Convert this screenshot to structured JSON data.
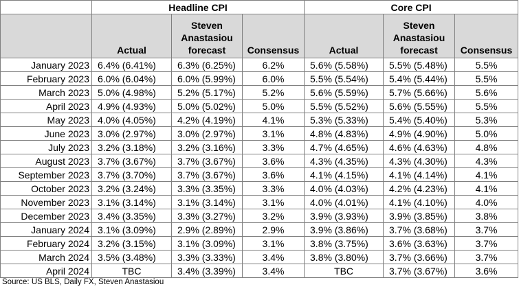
{
  "headline_group": "Headline CPI",
  "core_group": "Core CPI",
  "columns": [
    "Actual",
    "Steven Anastasiou forecast",
    "Consensus"
  ],
  "rows": [
    {
      "month": "January 2023",
      "h_actual": "6.4% (6.41%)",
      "h_forecast": "6.3% (6.25%)",
      "h_consensus": "6.2%",
      "c_actual": "5.6% (5.58%)",
      "c_forecast": "5.5% (5.48%)",
      "c_consensus": "5.5%"
    },
    {
      "month": "February 2023",
      "h_actual": "6.0% (6.04%)",
      "h_forecast": "6.0% (5.99%)",
      "h_consensus": "6.0%",
      "c_actual": "5.5% (5.54%)",
      "c_forecast": "5.4% (5.44%)",
      "c_consensus": "5.5%"
    },
    {
      "month": "March 2023",
      "h_actual": "5.0% (4.98%)",
      "h_forecast": "5.2% (5.17%)",
      "h_consensus": "5.2%",
      "c_actual": "5.6% (5.59%)",
      "c_forecast": "5.7% (5.66%)",
      "c_consensus": "5.6%"
    },
    {
      "month": "April 2023",
      "h_actual": "4.9% (4.93%)",
      "h_forecast": "5.0% (5.02%)",
      "h_consensus": "5.0%",
      "c_actual": "5.5% (5.52%)",
      "c_forecast": "5.6% (5.55%)",
      "c_consensus": "5.5%"
    },
    {
      "month": "May 2023",
      "h_actual": "4.0% (4.05%)",
      "h_forecast": "4.2% (4.19%)",
      "h_consensus": "4.1%",
      "c_actual": "5.3% (5.33%)",
      "c_forecast": "5.4% (5.40%)",
      "c_consensus": "5.3%"
    },
    {
      "month": "June 2023",
      "h_actual": "3.0% (2.97%)",
      "h_forecast": "3.0% (2.97%)",
      "h_consensus": "3.1%",
      "c_actual": "4.8% (4.83%)",
      "c_forecast": "4.9% (4.90%)",
      "c_consensus": "5.0%"
    },
    {
      "month": "July 2023",
      "h_actual": "3.2% (3.18%)",
      "h_forecast": "3.2% (3.16%)",
      "h_consensus": "3.3%",
      "c_actual": "4.7% (4.65%)",
      "c_forecast": "4.6% (4.63%)",
      "c_consensus": "4.8%"
    },
    {
      "month": "August 2023",
      "h_actual": "3.7% (3.67%)",
      "h_forecast": "3.7% (3.67%)",
      "h_consensus": "3.6%",
      "c_actual": "4.3% (4.35%)",
      "c_forecast": "4.3% (4.30%)",
      "c_consensus": "4.3%"
    },
    {
      "month": "September 2023",
      "h_actual": "3.7% (3.70%)",
      "h_forecast": "3.7% (3.67%)",
      "h_consensus": "3.6%",
      "c_actual": "4.1% (4.15%)",
      "c_forecast": "4.1% (4.14%)",
      "c_consensus": "4.1%"
    },
    {
      "month": "October 2023",
      "h_actual": "3.2% (3.24%)",
      "h_forecast": "3.3% (3.35%)",
      "h_consensus": "3.3%",
      "c_actual": "4.0% (4.03%)",
      "c_forecast": "4.2% (4.23%)",
      "c_consensus": "4.1%"
    },
    {
      "month": "November 2023",
      "h_actual": "3.1% (3.14%)",
      "h_forecast": "3.1% (3.14%)",
      "h_consensus": "3.1%",
      "c_actual": "4.0% (4.01%)",
      "c_forecast": "4.1% (4.10%)",
      "c_consensus": "4.0%"
    },
    {
      "month": "December 2023",
      "h_actual": "3.4% (3.35%)",
      "h_forecast": "3.3% (3.27%)",
      "h_consensus": "3.2%",
      "c_actual": "3.9% (3.93%)",
      "c_forecast": "3.9% (3.85%)",
      "c_consensus": "3.8%"
    },
    {
      "month": "January 2024",
      "h_actual": "3.1% (3.09%)",
      "h_forecast": "2.9% (2.89%)",
      "h_consensus": "2.9%",
      "c_actual": "3.9% (3.86%)",
      "c_forecast": "3.7% (3.68%)",
      "c_consensus": "3.7%"
    },
    {
      "month": "February 2024",
      "h_actual": "3.2% (3.15%)",
      "h_forecast": "3.1% (3.09%)",
      "h_consensus": "3.1%",
      "c_actual": "3.8% (3.75%)",
      "c_forecast": "3.6% (3.63%)",
      "c_consensus": "3.7%"
    },
    {
      "month": "March 2024",
      "h_actual": "3.5% (3.48%)",
      "h_forecast": "3.3% (3.33%)",
      "h_consensus": "3.4%",
      "c_actual": "3.8% (3.80%)",
      "c_forecast": "3.7% (3.66%)",
      "c_consensus": "3.7%"
    },
    {
      "month": "April 2024",
      "h_actual": "TBC",
      "h_forecast": "3.4% (3.39%)",
      "h_consensus": "3.4%",
      "c_actual": "TBC",
      "c_forecast": "3.7% (3.67%)",
      "c_consensus": "3.6%"
    }
  ],
  "source": "Source: US BLS, Daily FX, Steven Anastasiou"
}
